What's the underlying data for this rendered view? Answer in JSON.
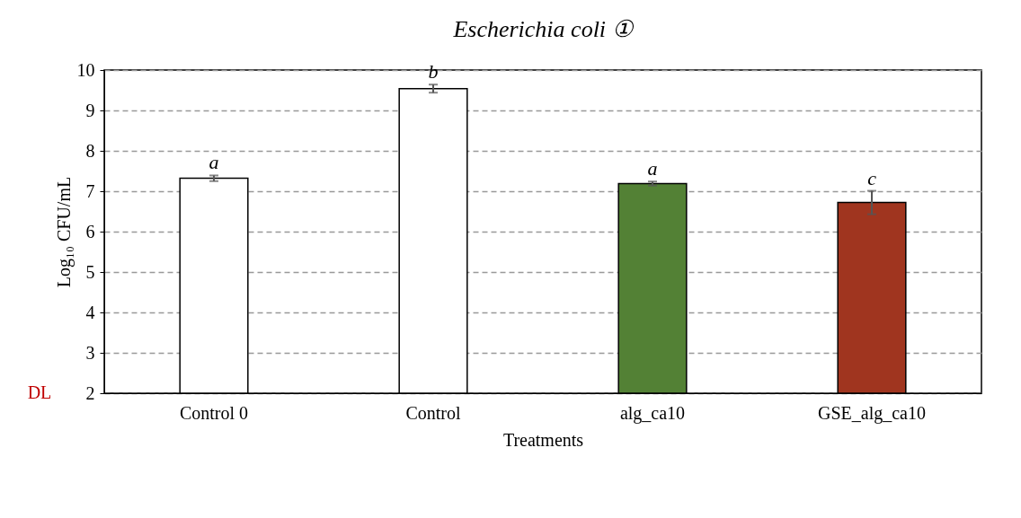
{
  "chart_data": {
    "type": "bar",
    "title": "Escherichia coli ①",
    "xlabel": "Treatments",
    "ylabel": "Log₁₀ CFU/mL",
    "categories": [
      "Control 0",
      "Control",
      "alg_ca10",
      "GSE_alg_ca10"
    ],
    "values": [
      7.32,
      9.54,
      7.19,
      6.72
    ],
    "colors": [
      "#ffffff",
      "#ffffff",
      "#538135",
      "#a0351f"
    ],
    "errors": [
      0.07,
      0.1,
      0.05,
      0.29
    ],
    "ylim": [
      2,
      10
    ],
    "yticks": [
      2,
      3,
      4,
      5,
      6,
      7,
      8,
      9,
      10
    ],
    "grid": "y",
    "annotations": [
      {
        "text": "a",
        "x": "Control 0",
        "y": 7.39
      },
      {
        "text": "b",
        "x": "Control",
        "y": 9.64
      },
      {
        "text": "a",
        "x": "alg_ca10",
        "y": 7.24
      },
      {
        "text": "c",
        "x": "GSE_alg_ca10",
        "y": 7.01
      },
      "DL"
    ]
  }
}
